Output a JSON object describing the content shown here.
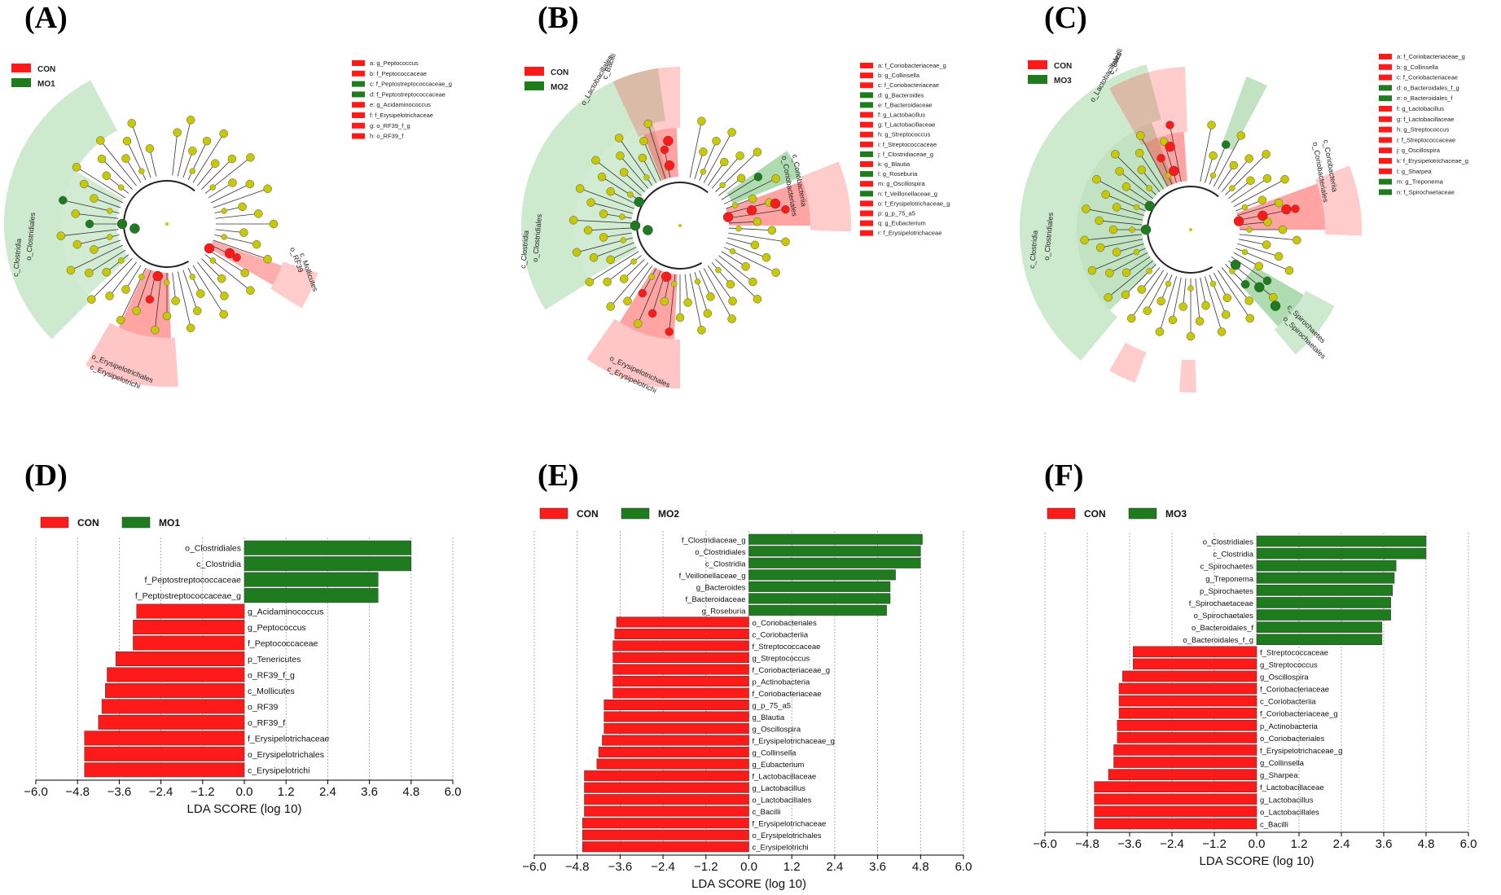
{
  "colors": {
    "con": "#ff1a1a",
    "mo": "#1e7b1e",
    "node": "#c8c800",
    "clade_red": "#ff3333",
    "clade_green": "#4caf50"
  },
  "panels": {
    "A": {
      "label": "(A)",
      "legend": [
        "CON",
        "MO1"
      ],
      "key": [
        "a: g_Peptococcus",
        "b: f_Peptococcaceae",
        "c: f_Peptostreptococcaceae_g",
        "d: f_Peptostreptococcaceae",
        "e: g_Acidaminococcus",
        "f: f_Erysipelotrichaceae",
        "g: o_RF39_f_g",
        "h: o_RF39_f"
      ],
      "key_colors": [
        "con",
        "con",
        "mo",
        "mo",
        "con",
        "con",
        "con",
        "con"
      ],
      "clade_labels": [
        "c_Clostridia",
        "o_Clostridiales",
        "c_Erysipelotrichi",
        "o_Erysipelotrichales",
        "c_Mollicutes",
        "o_RF39"
      ]
    },
    "B": {
      "label": "(B)",
      "legend": [
        "CON",
        "MO2"
      ],
      "key": [
        "a: f_Coriobacteriaceae_g",
        "b: g_Collinsella",
        "c: f_Coriobacteriaceae",
        "d: g_Bacteroides",
        "e: f_Bacteroidaceae",
        "f: g_Lactobacillus",
        "g: f_Lactobacillaceae",
        "h: g_Streptococcus",
        "i: f_Streptococcaceae",
        "j: f_Clostridiaceae_g",
        "k: g_Blautia",
        "l: g_Roseburia",
        "m: g_Oscillospira",
        "n: f_Veillonellaceae_g",
        "o: f_Erysipelotrichaceae_g",
        "p: g_p_75_a5",
        "q: g_Eubacterium",
        "r: f_Erysipelotrichaceae"
      ],
      "key_colors": [
        "con",
        "con",
        "con",
        "mo",
        "mo",
        "con",
        "con",
        "con",
        "con",
        "mo",
        "con",
        "mo",
        "con",
        "mo",
        "con",
        "con",
        "con",
        "con"
      ],
      "clade_labels": [
        "c_Bacilli",
        "o_Lactobacillales",
        "c_Clostridia",
        "o_Clostridiales",
        "c_Erysipelotrichi",
        "o_Erysipelotrichales",
        "c_Coriobacteriia",
        "o_Coriobacteriales"
      ]
    },
    "C": {
      "label": "(C)",
      "legend": [
        "CON",
        "MO3"
      ],
      "key": [
        "a: f_Coriobacteriaceae_g",
        "b: g_Collinsella",
        "c: f_Coriobacteriaceae",
        "d: o_Bacteroidales_f_g",
        "e: o_Bacteroidales_f",
        "f: g_Lactobacillus",
        "g: f_Lactobacillaceae",
        "h: g_Streptococcus",
        "i: f_Streptococcaceae",
        "j: g_Oscillospira",
        "k: f_Erysipelotrichaceae_g",
        "l: g_Sharpea",
        "m: g_Treponema",
        "n: f_Spirochaetaceae"
      ],
      "key_colors": [
        "con",
        "con",
        "con",
        "mo",
        "mo",
        "con",
        "con",
        "con",
        "con",
        "con",
        "con",
        "con",
        "mo",
        "mo"
      ],
      "clade_labels": [
        "c_Bacilli",
        "o_Lactobacillales",
        "c_Clostridia",
        "o_Clostridiales",
        "c_Coriobacteriia",
        "o_Coriobacteriales",
        "c_Spirochaetes",
        "o_Spirochaetales"
      ]
    },
    "D": {
      "label": "(D)"
    },
    "E": {
      "label": "(E)"
    },
    "F": {
      "label": "(F)"
    }
  },
  "chart_data": [
    {
      "type": "bar",
      "panel": "D",
      "orientation": "horizontal",
      "legend": [
        "CON",
        "MO1"
      ],
      "xlabel": "LDA SCORE (log 10)",
      "xticks": [
        "−6.0",
        "−4.8",
        "−3.6",
        "−2.4",
        "−1.2",
        "0.0",
        "1.2",
        "2.4",
        "3.6",
        "4.8",
        "6.0"
      ],
      "xlim": [
        -6,
        6
      ],
      "categories": [
        "o_Clostridiales",
        "c_Clostridia",
        "f_Peptostreptococcaceae",
        "f_Peptostreptococcaceae_g",
        "g_Acidaminococcus",
        "g_Peptococcus",
        "f_Peptococcaceae",
        "p_Tenericutes",
        "o_RF39_f_g",
        "c_Mollicutes",
        "o_RF39",
        "o_RF39_f",
        "f_Erysipelotrichaceae",
        "o_Erysipelotrichales",
        "c_Erysipelotrichi"
      ],
      "values": [
        4.8,
        4.8,
        3.85,
        3.85,
        -3.1,
        -3.2,
        -3.2,
        -3.7,
        -3.95,
        -4.0,
        -4.1,
        -4.2,
        -4.6,
        -4.6,
        -4.6
      ],
      "groups": [
        "MO1",
        "MO1",
        "MO1",
        "MO1",
        "CON",
        "CON",
        "CON",
        "CON",
        "CON",
        "CON",
        "CON",
        "CON",
        "CON",
        "CON",
        "CON"
      ]
    },
    {
      "type": "bar",
      "panel": "E",
      "orientation": "horizontal",
      "legend": [
        "CON",
        "MO2"
      ],
      "xlabel": "LDA SCORE (log 10)",
      "xticks": [
        "−6.0",
        "−4.8",
        "−3.6",
        "−2.4",
        "−1.2",
        "0.0",
        "1.2",
        "2.4",
        "3.6",
        "4.8",
        "6.0"
      ],
      "xlim": [
        -6,
        6
      ],
      "categories": [
        "f_Clostridiaceae_g",
        "o_Clostridiales",
        "c_Clostridia",
        "f_Veillonellaceae_g",
        "g_Bacteroides",
        "f_Bacteroidaceae",
        "g_Roseburia",
        "o_Coriobacteriales",
        "c_Coriobacteriia",
        "f_Streptococcaceae",
        "g_Streptococcus",
        "f_Coriobacteriaceae_g",
        "p_Actinobacteria",
        "f_Coriobacteriaceae",
        "g_p_75_a5",
        "g_Blautia",
        "g_Oscillospira",
        "f_Erysipelotrichaceae_g",
        "g_Collinsella",
        "g_Eubacterium",
        "f_Lactobacillaceae",
        "g_Lactobacillus",
        "o_Lactobacillales",
        "c_Bacilli",
        "f_Erysipelotrichaceae",
        "o_Erysipelotrichales",
        "c_Erysipelotrichi"
      ],
      "values": [
        4.85,
        4.8,
        4.8,
        4.1,
        3.95,
        3.95,
        3.85,
        -3.7,
        -3.75,
        -3.8,
        -3.8,
        -3.8,
        -3.8,
        -3.8,
        -4.05,
        -4.05,
        -4.05,
        -4.1,
        -4.2,
        -4.25,
        -4.6,
        -4.6,
        -4.6,
        -4.6,
        -4.65,
        -4.65,
        -4.65
      ],
      "groups": [
        "MO2",
        "MO2",
        "MO2",
        "MO2",
        "MO2",
        "MO2",
        "MO2",
        "CON",
        "CON",
        "CON",
        "CON",
        "CON",
        "CON",
        "CON",
        "CON",
        "CON",
        "CON",
        "CON",
        "CON",
        "CON",
        "CON",
        "CON",
        "CON",
        "CON",
        "CON",
        "CON",
        "CON"
      ]
    },
    {
      "type": "bar",
      "panel": "F",
      "orientation": "horizontal",
      "legend": [
        "CON",
        "MO3"
      ],
      "xlabel": "LDA SCORE (log 10)",
      "xticks": [
        "−6.0",
        "−4.8",
        "−3.6",
        "−2.4",
        "−1.2",
        "0.0",
        "1.2",
        "2.4",
        "3.6",
        "4.8",
        "6.0"
      ],
      "xlim": [
        -6,
        6
      ],
      "categories": [
        "o_Clostridiales",
        "c_Clostridia",
        "c_Spirochaetes",
        "g_Treponema",
        "p_Spirochaetes",
        "f_Spirochaetaceae",
        "o_Spirochaetales",
        "o_Bacteroidales_f",
        "o_Bacteroidales_f_g",
        "f_Streptococcaceae",
        "g_Streptococcus",
        "g_Oscillospira",
        "f_Coriobacteriaceae",
        "c_Coriobacteriia",
        "f_Coriobacteriaceae_g",
        "p_Actinobacteria",
        "o_Coriobacteriales",
        "f_Erysipelotrichaceae_g",
        "g_Collinsella",
        "g_Sharpea",
        "f_Lactobacillaceae",
        "g_Lactobacillus",
        "o_Lactobacillales",
        "c_Bacilli"
      ],
      "values": [
        4.8,
        4.8,
        3.95,
        3.9,
        3.85,
        3.8,
        3.8,
        3.55,
        3.55,
        -3.5,
        -3.5,
        -3.8,
        -3.9,
        -3.9,
        -3.9,
        -3.95,
        -3.95,
        -4.05,
        -4.05,
        -4.2,
        -4.6,
        -4.6,
        -4.6,
        -4.6
      ],
      "groups": [
        "MO3",
        "MO3",
        "MO3",
        "MO3",
        "MO3",
        "MO3",
        "MO3",
        "MO3",
        "MO3",
        "CON",
        "CON",
        "CON",
        "CON",
        "CON",
        "CON",
        "CON",
        "CON",
        "CON",
        "CON",
        "CON",
        "CON",
        "CON",
        "CON",
        "CON"
      ]
    }
  ]
}
